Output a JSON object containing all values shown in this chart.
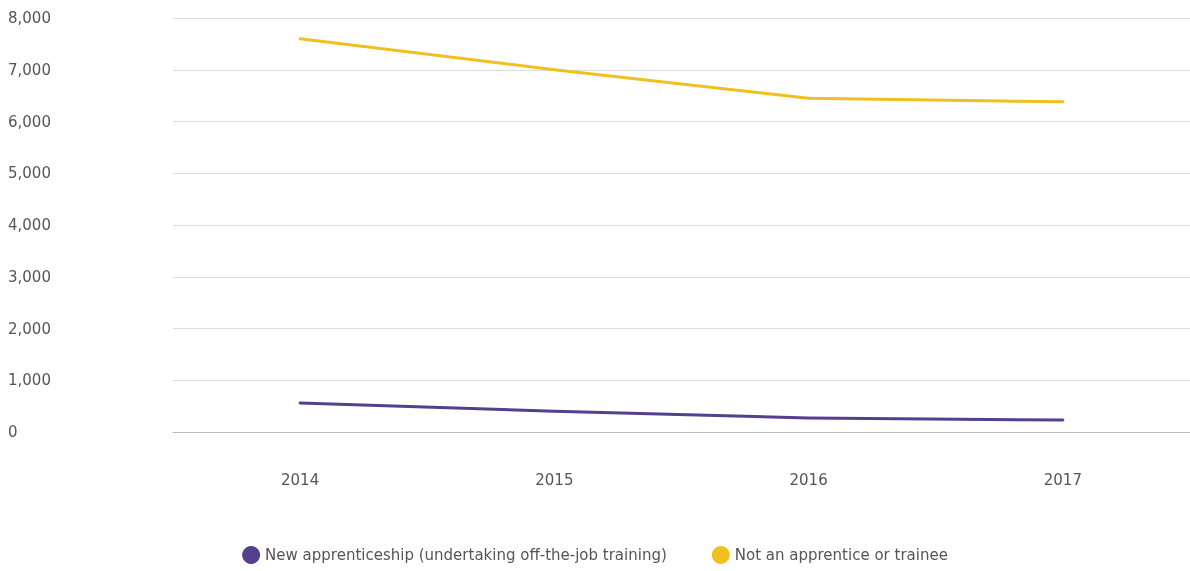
{
  "chart_data": {
    "type": "line",
    "categories": [
      "2014",
      "2015",
      "2016",
      "2017"
    ],
    "series": [
      {
        "name": "New apprenticeship (undertaking off-the-job training)",
        "color": "#553f8f",
        "values": [
          560,
          400,
          270,
          230
        ]
      },
      {
        "name": "Not an apprentice or trainee",
        "color": "#f0c020",
        "values": [
          7600,
          7000,
          6450,
          6380
        ]
      }
    ],
    "ylim": [
      0,
      8000
    ],
    "yticks": [
      0,
      {
        "value": 1000,
        "label": "1,000"
      },
      {
        "value": 2000,
        "label": "2,000"
      },
      {
        "value": 3000,
        "label": "3,000"
      },
      {
        "value": 4000,
        "label": "4,000"
      },
      {
        "value": 5000,
        "label": "5,000"
      },
      {
        "value": 6000,
        "label": "6,000"
      },
      {
        "value": 7000,
        "label": "7,000"
      },
      {
        "value": 8000,
        "label": "8,000"
      }
    ],
    "grid": "y",
    "legend": "bottom",
    "marker": "none",
    "line_style": "solid"
  }
}
